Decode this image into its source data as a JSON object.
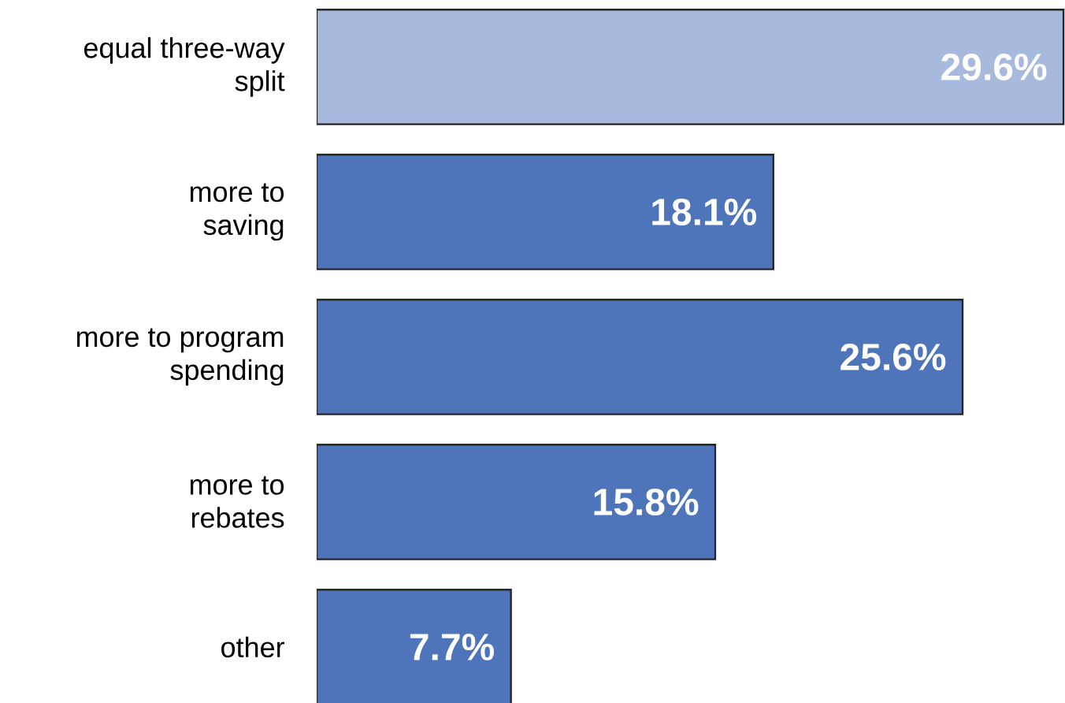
{
  "chart_data": {
    "type": "bar",
    "orientation": "horizontal",
    "categories": [
      "equal three-way split",
      "more to saving",
      "more to program spending",
      "more to rebates",
      "other"
    ],
    "values": [
      29.6,
      18.1,
      25.6,
      15.8,
      7.7
    ],
    "colors": [
      "#a7b9dc",
      "#4e74ba",
      "#4e74ba",
      "#4e74ba",
      "#4e74ba"
    ],
    "value_labels": [
      "29.6%",
      "18.1%",
      "25.6%",
      "15.8%",
      "7.7%"
    ]
  }
}
